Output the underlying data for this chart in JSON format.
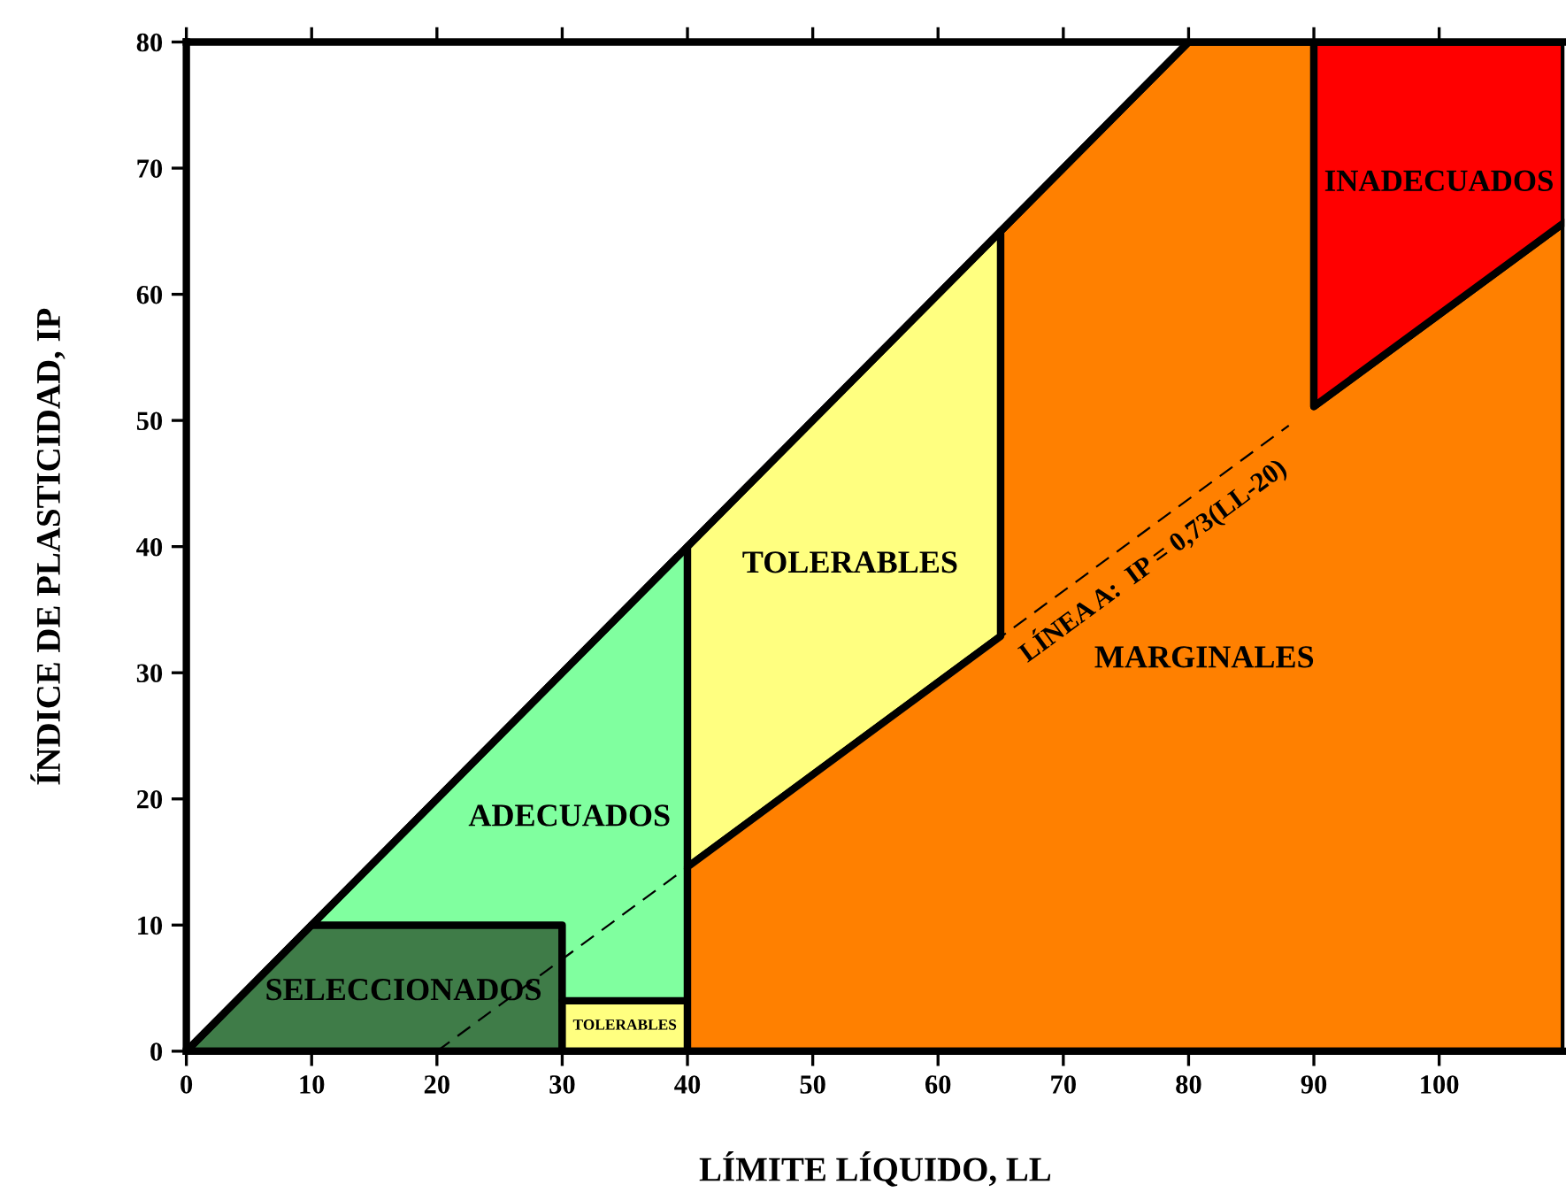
{
  "chart_data": {
    "type": "area",
    "xlabel": "LÍMITE LÍQUIDO, LL",
    "ylabel": "ÍNDICE DE PLASTICIDAD, IP",
    "xlim": [
      0,
      110
    ],
    "ylim": [
      0,
      80
    ],
    "xticks": [
      0,
      10,
      20,
      30,
      40,
      50,
      60,
      70,
      80,
      90,
      100
    ],
    "yticks": [
      0,
      10,
      20,
      30,
      40,
      50,
      60,
      70,
      80
    ],
    "grid": false,
    "legend": false,
    "series": [
      {
        "name": "SELECCIONADOS",
        "color": "#3f7c48",
        "x": [
          0,
          10,
          30,
          30
        ],
        "values": [
          0,
          10,
          10,
          0
        ]
      },
      {
        "name": "TOLERABLES",
        "color": "#ffff80",
        "x": [
          30,
          30,
          40,
          40
        ],
        "values": [
          0,
          4,
          4,
          0
        ]
      },
      {
        "name": "ADECUADOS",
        "color": "#80ff9f",
        "x": [
          10,
          40,
          40,
          30,
          30
        ],
        "values": [
          10,
          40,
          4,
          4,
          10
        ]
      },
      {
        "name": "TOLERABLES",
        "color": "#ffff80",
        "x": [
          40,
          65,
          65,
          40
        ],
        "values": [
          40,
          65,
          32.9,
          14.6
        ]
      },
      {
        "name": "MARGINALES",
        "color": "#ff8000",
        "x": [
          40,
          40,
          65,
          65,
          80,
          90,
          90,
          110,
          110
        ],
        "values": [
          0,
          14.6,
          32.9,
          65,
          80,
          80,
          51.1,
          65.7,
          0
        ]
      },
      {
        "name": "INADECUADOS",
        "color": "#ff0000",
        "x": [
          90,
          90,
          110,
          110
        ],
        "values": [
          51.1,
          80,
          80,
          65.7
        ]
      },
      {
        "type": "line",
        "color": "#000000",
        "line_style": "solid",
        "x": [
          0,
          80
        ],
        "values": [
          0,
          80
        ]
      },
      {
        "type": "line",
        "name": "LÍNEA A:  IP = 0,73(LL-20)",
        "color": "#000000",
        "line_style": "dashed",
        "x": [
          20,
          88
        ],
        "values": [
          0,
          49.6
        ]
      }
    ]
  }
}
